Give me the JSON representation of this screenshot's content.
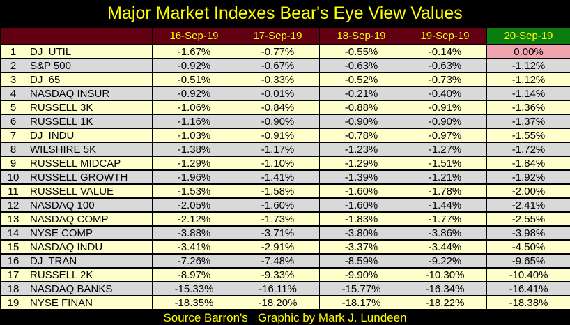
{
  "title": "Major Market Indexes Bear's Eye View Values",
  "footer": "Source Barron's   Graphic by Mark J. Lundeen",
  "colors": {
    "background": "#000000",
    "title_text": "#ffff00",
    "header_bg": "#600010",
    "header_text": "#ffff00",
    "header_last_bg": "#0b7c10",
    "row_odd_bg": "#ffffcc",
    "row_even_bg": "#d9d9d9",
    "highlight_cell_bg": "#f1a3b0",
    "cell_text": "#000000"
  },
  "chart_data": {
    "type": "table",
    "columns": [
      "",
      "16-Sep-19",
      "17-Sep-19",
      "18-Sep-19",
      "19-Sep-19",
      "20-Sep-19"
    ],
    "rows": [
      {
        "num": "1",
        "name": "DJ  UTIL",
        "values": [
          "-1.67%",
          "-0.77%",
          "-0.55%",
          "-0.14%",
          "0.00%"
        ]
      },
      {
        "num": "2",
        "name": "S&P 500",
        "values": [
          "-0.92%",
          "-0.67%",
          "-0.63%",
          "-0.63%",
          "-1.12%"
        ]
      },
      {
        "num": "3",
        "name": "DJ  65",
        "values": [
          "-0.51%",
          "-0.33%",
          "-0.52%",
          "-0.73%",
          "-1.12%"
        ]
      },
      {
        "num": "4",
        "name": "NASDAQ INSUR",
        "values": [
          "-0.92%",
          "-0.01%",
          "-0.21%",
          "-0.40%",
          "-1.14%"
        ]
      },
      {
        "num": "5",
        "name": "RUSSELL 3K",
        "values": [
          "-1.06%",
          "-0.84%",
          "-0.88%",
          "-0.91%",
          "-1.36%"
        ]
      },
      {
        "num": "6",
        "name": "RUSSELL 1K",
        "values": [
          "-1.16%",
          "-0.90%",
          "-0.90%",
          "-0.90%",
          "-1.37%"
        ]
      },
      {
        "num": "7",
        "name": "DJ  INDU",
        "values": [
          "-1.03%",
          "-0.91%",
          "-0.78%",
          "-0.97%",
          "-1.55%"
        ]
      },
      {
        "num": "8",
        "name": "WILSHIRE 5K",
        "values": [
          "-1.38%",
          "-1.17%",
          "-1.23%",
          "-1.27%",
          "-1.72%"
        ]
      },
      {
        "num": "9",
        "name": "RUSSELL MIDCAP",
        "values": [
          "-1.29%",
          "-1.10%",
          "-1.29%",
          "-1.51%",
          "-1.84%"
        ]
      },
      {
        "num": "10",
        "name": "RUSSELL GROWTH",
        "values": [
          "-1.96%",
          "-1.41%",
          "-1.39%",
          "-1.21%",
          "-1.92%"
        ]
      },
      {
        "num": "11",
        "name": "RUSSELL VALUE",
        "values": [
          "-1.53%",
          "-1.58%",
          "-1.60%",
          "-1.78%",
          "-2.00%"
        ]
      },
      {
        "num": "12",
        "name": "NASDAQ 100",
        "values": [
          "-2.05%",
          "-1.60%",
          "-1.60%",
          "-1.44%",
          "-2.41%"
        ]
      },
      {
        "num": "13",
        "name": "NASDAQ COMP",
        "values": [
          "-2.12%",
          "-1.73%",
          "-1.83%",
          "-1.77%",
          "-2.55%"
        ]
      },
      {
        "num": "14",
        "name": "NYSE COMP",
        "values": [
          "-3.88%",
          "-3.71%",
          "-3.80%",
          "-3.86%",
          "-3.98%"
        ]
      },
      {
        "num": "15",
        "name": "NASDAQ INDU",
        "values": [
          "-3.41%",
          "-2.91%",
          "-3.37%",
          "-3.44%",
          "-4.50%"
        ]
      },
      {
        "num": "16",
        "name": "DJ  TRAN",
        "values": [
          "-7.26%",
          "-7.48%",
          "-8.59%",
          "-9.22%",
          "-9.65%"
        ]
      },
      {
        "num": "17",
        "name": "RUSSELL 2K",
        "values": [
          "-8.97%",
          "-9.33%",
          "-9.90%",
          "-10.30%",
          "-10.40%"
        ]
      },
      {
        "num": "18",
        "name": "NASDAQ BANKS",
        "values": [
          "-15.33%",
          "-16.11%",
          "-15.77%",
          "-16.34%",
          "-16.41%"
        ]
      },
      {
        "num": "19",
        "name": "NYSE FINAN",
        "values": [
          "-18.35%",
          "-18.20%",
          "-18.17%",
          "-18.22%",
          "-18.38%"
        ]
      }
    ],
    "highlight": {
      "row_num": "1",
      "column": "20-Sep-19",
      "value": "0.00%"
    }
  }
}
